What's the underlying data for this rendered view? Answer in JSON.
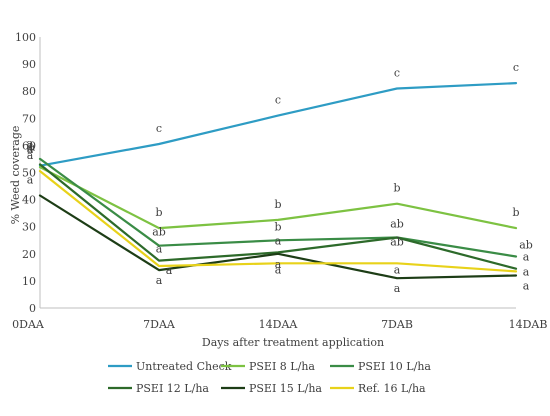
{
  "chart_data": {
    "type": "line",
    "title": "",
    "xlabel": "Days after treatment application",
    "ylabel": "% Weed coverage",
    "ylim": [
      0,
      100
    ],
    "yticks": [
      0,
      10,
      20,
      30,
      40,
      50,
      60,
      70,
      80,
      90,
      100
    ],
    "categories": [
      "0DAA",
      "7DAA",
      "14DAA",
      "7DAB",
      "14DAB"
    ],
    "grid": false,
    "legend_position": "bottom",
    "series": [
      {
        "name": "Untreated Check",
        "color": "#2E9CC4",
        "values": [
          52.5,
          60.5,
          71,
          81,
          83
        ],
        "letters": [
          "a",
          "c",
          "c",
          "c",
          "c"
        ]
      },
      {
        "name": "PSEI 8 L/ha",
        "color": "#7DC242",
        "values": [
          52,
          29.5,
          32.5,
          38.5,
          29.5
        ],
        "letters": [
          "a",
          "b",
          "b",
          "b",
          "b"
        ]
      },
      {
        "name": "PSEI 10 L/ha",
        "color": "#3A8C46",
        "values": [
          55,
          23,
          25,
          26,
          19
        ],
        "letters": [
          "a",
          "ab",
          "b",
          "ab",
          "ab"
        ]
      },
      {
        "name": "PSEI 12 L/ha",
        "color": "#2D6A2A",
        "values": [
          53,
          17.5,
          20.5,
          26,
          14.5
        ],
        "letters": [
          "a",
          "a",
          "a",
          "ab",
          "a"
        ]
      },
      {
        "name": "PSEI 15 L/ha",
        "color": "#1D3D16",
        "values": [
          41.5,
          14,
          20,
          11,
          12
        ],
        "letters": [
          "a",
          "a",
          "a",
          "a",
          "a"
        ]
      },
      {
        "name": "Ref. 16 L/ha",
        "color": "#E8D21A",
        "values": [
          50.5,
          15.5,
          16.5,
          16.5,
          13.5
        ],
        "letters": [
          "a",
          "a",
          "a",
          "a",
          "a"
        ]
      }
    ]
  }
}
